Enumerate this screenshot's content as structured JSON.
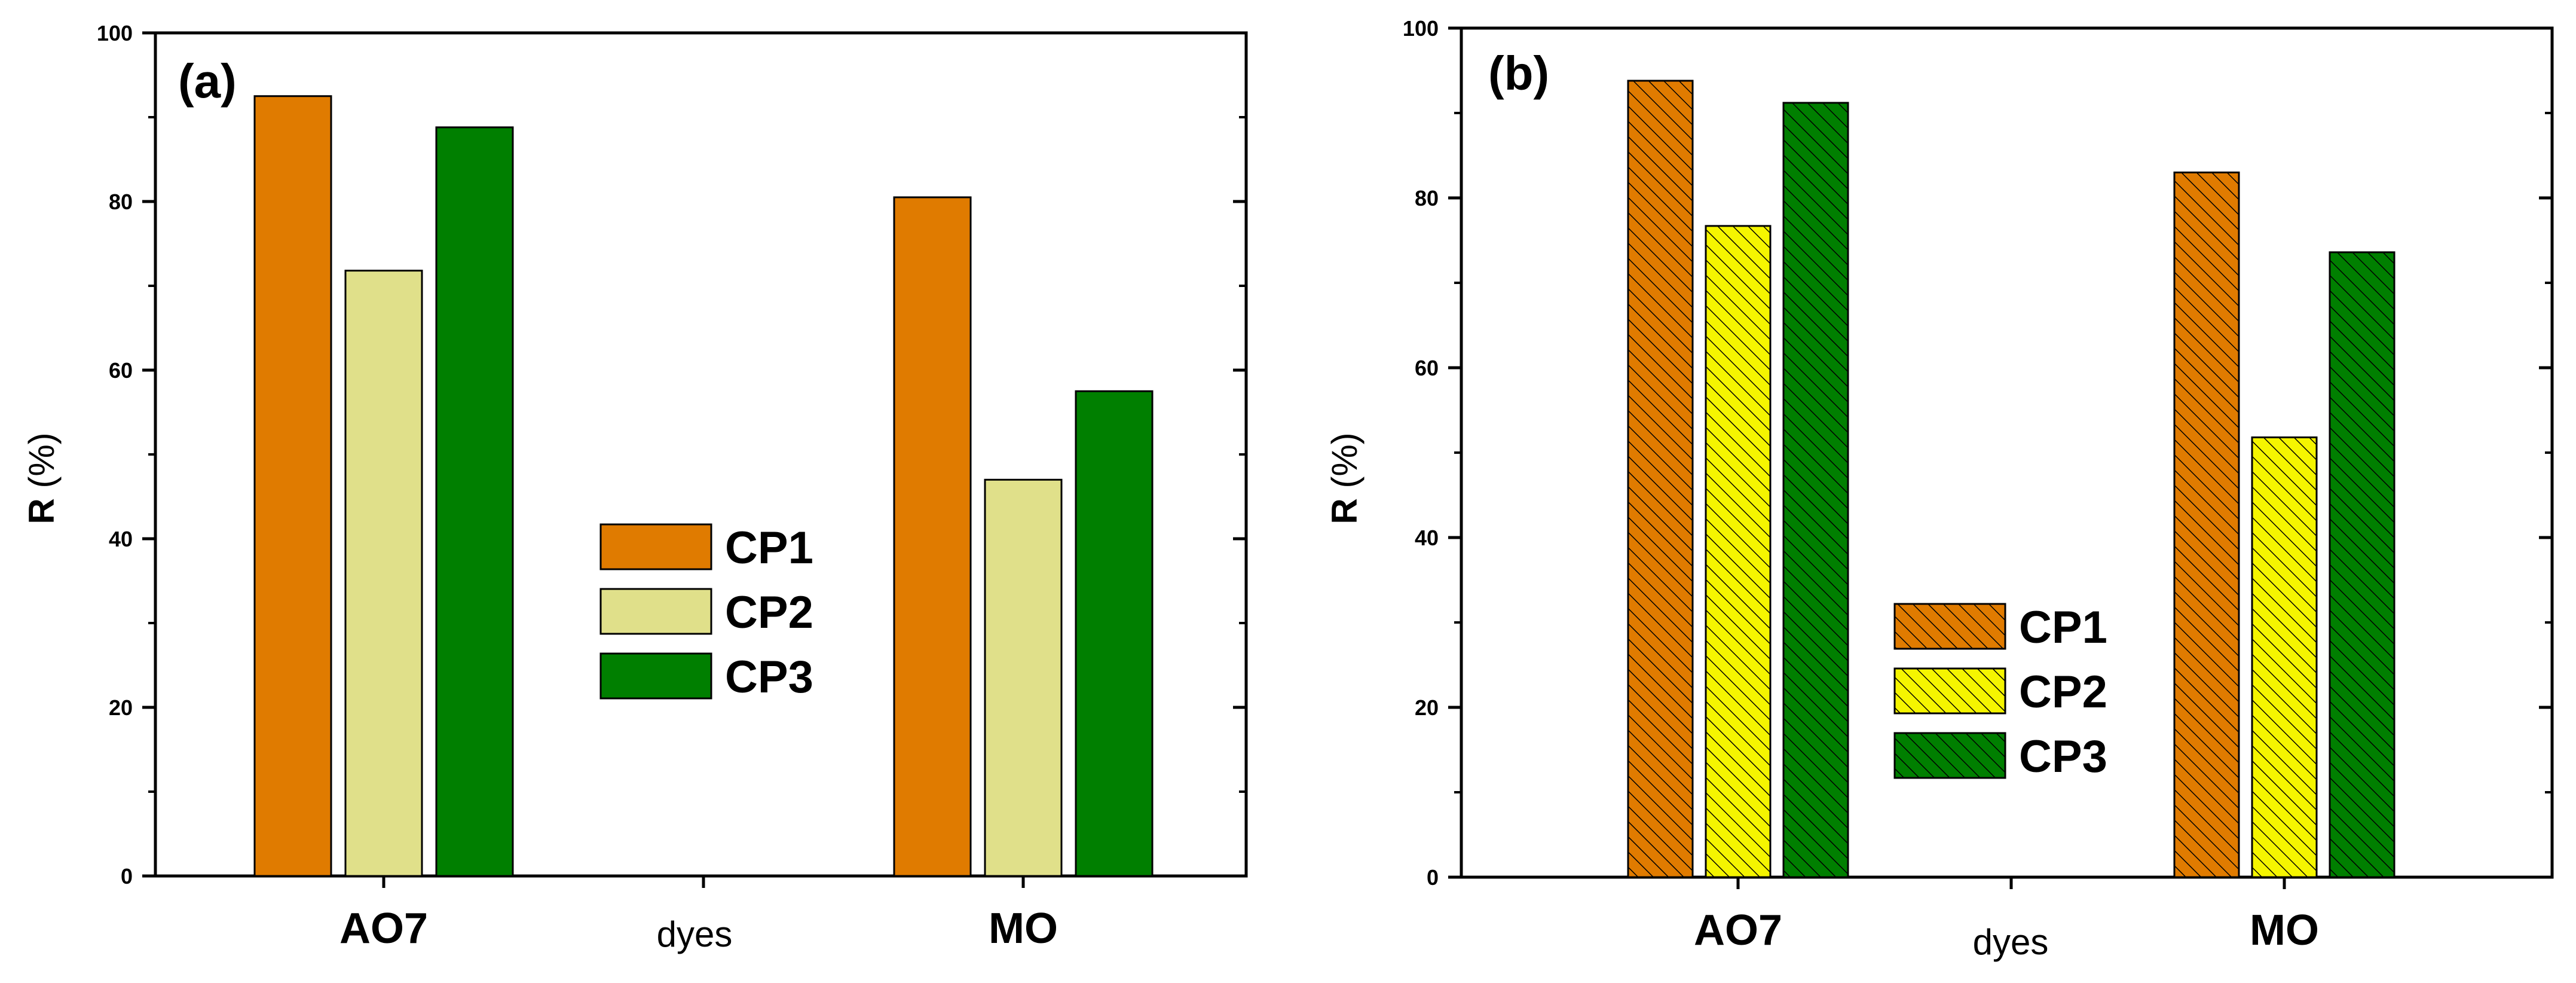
{
  "chart_data": [
    {
      "type": "bar",
      "panel_label": "(a)",
      "categories": [
        "AO7",
        "MO"
      ],
      "series": [
        {
          "name": "CP1",
          "values": [
            92.5,
            80.5
          ],
          "color": "#E07B00",
          "hatch": false
        },
        {
          "name": "CP2",
          "values": [
            71.8,
            47.0
          ],
          "color": "#E0E08A",
          "hatch": false
        },
        {
          "name": "CP3",
          "values": [
            88.8,
            57.5
          ],
          "color": "#007F00",
          "hatch": false
        }
      ],
      "xlabel": "dyes",
      "ylabel_main": "R",
      "ylabel_unit": " (%)",
      "ylim": [
        0,
        100
      ],
      "yticks": [
        "0",
        "20",
        "40",
        "60",
        "80",
        "100"
      ],
      "legend_position": "center"
    },
    {
      "type": "bar",
      "panel_label": "(b)",
      "categories": [
        "AO7",
        "MO"
      ],
      "series": [
        {
          "name": "CP1",
          "values": [
            93.8,
            83.0
          ],
          "color": "#E07B00",
          "hatch": true
        },
        {
          "name": "CP2",
          "values": [
            76.7,
            51.8
          ],
          "color": "#F5F500",
          "hatch": true
        },
        {
          "name": "CP3",
          "values": [
            91.2,
            73.6
          ],
          "color": "#007F00",
          "hatch": true
        }
      ],
      "xlabel": "dyes",
      "ylabel_main": "R",
      "ylabel_unit": " (%)",
      "ylim": [
        0,
        100
      ],
      "yticks": [
        "0",
        "20",
        "40",
        "60",
        "80",
        "100"
      ],
      "legend_position": "center-left"
    }
  ]
}
